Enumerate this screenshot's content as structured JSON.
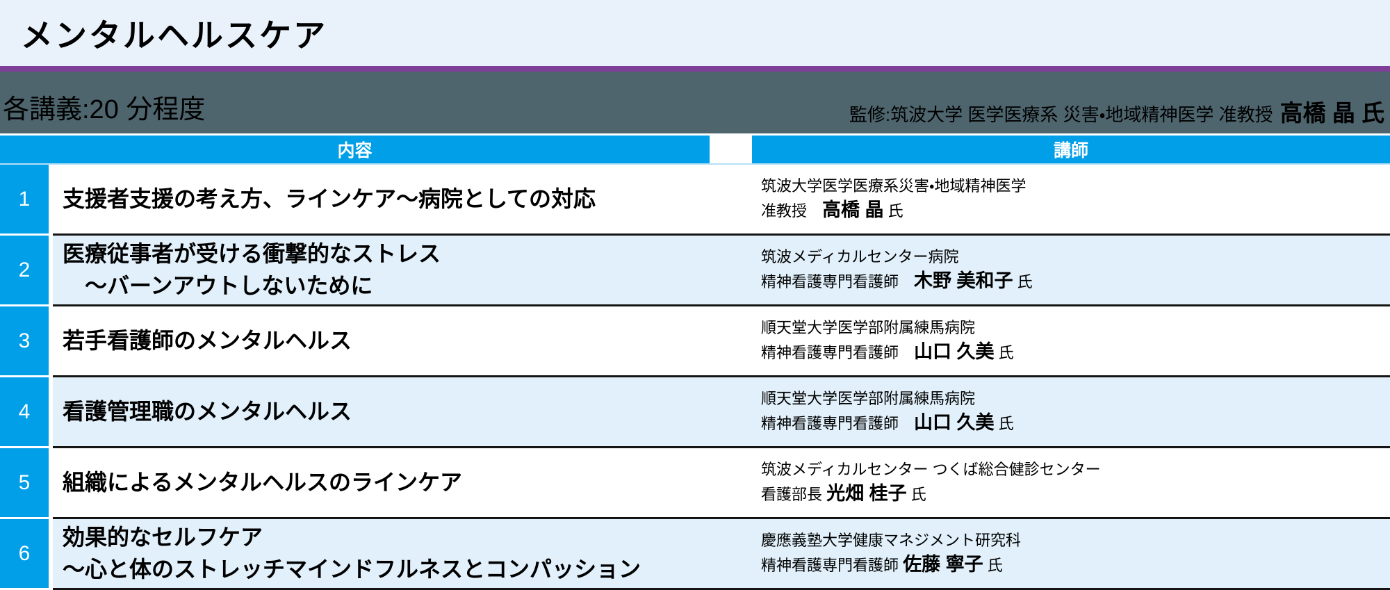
{
  "page": {
    "title": "メンタルヘルスケア",
    "lecture_duration": "各講義:20 分程度",
    "supervisor_label": "監修:筑波大学 医学医療系 災害・地域精神医学 准教授",
    "supervisor_name": "高橋 晶 氏"
  },
  "table": {
    "content_header": "内容",
    "lecturer_header": "講師",
    "rows": [
      {
        "no": "1",
        "title": "支援者支援の考え方、ラインケア〜病院としての対応",
        "affiliation": "筑波大学医学医療系災害・地域精神医学",
        "role": "准教授　",
        "name": "高橋 晶",
        "honorific": " 氏"
      },
      {
        "no": "2",
        "title": "医療従事者が受ける衝撃的なストレス\n　〜バーンアウトしないために",
        "affiliation": "筑波メディカルセンター病院",
        "role": "精神看護専門看護師　",
        "name": "木野 美和子",
        "honorific": " 氏"
      },
      {
        "no": "3",
        "title": "若手看護師のメンタルヘルス",
        "affiliation": "順天堂大学医学部附属練馬病院",
        "role": "精神看護専門看護師　",
        "name": "山口 久美",
        "honorific": " 氏"
      },
      {
        "no": "4",
        "title": "看護管理職のメンタルヘルス",
        "affiliation": "順天堂大学医学部附属練馬病院",
        "role": "精神看護専門看護師　",
        "name": "山口 久美",
        "honorific": " 氏"
      },
      {
        "no": "5",
        "title": "組織によるメンタルヘルスのラインケア",
        "affiliation": "筑波メディカルセンター つくば総合健診センター",
        "role": "看護部長 ",
        "name": "光畑 桂子",
        "honorific": " 氏"
      },
      {
        "no": "6",
        "title": "効果的なセルフケア\n〜心と体のストレッチマインドフルネスとコンパッション",
        "affiliation": "慶應義塾大学健康マネジメント研究科",
        "role": "精神看護専門看護師 ",
        "name": "佐藤 寧子",
        "honorific": " 氏"
      }
    ]
  },
  "colors": {
    "accent_blue": "#009fe8",
    "band_slate": "#4e656e",
    "divider_purple": "#7d3f98",
    "row_light_blue": "#e1f0fa",
    "header_bg": "#e9f2fb"
  }
}
